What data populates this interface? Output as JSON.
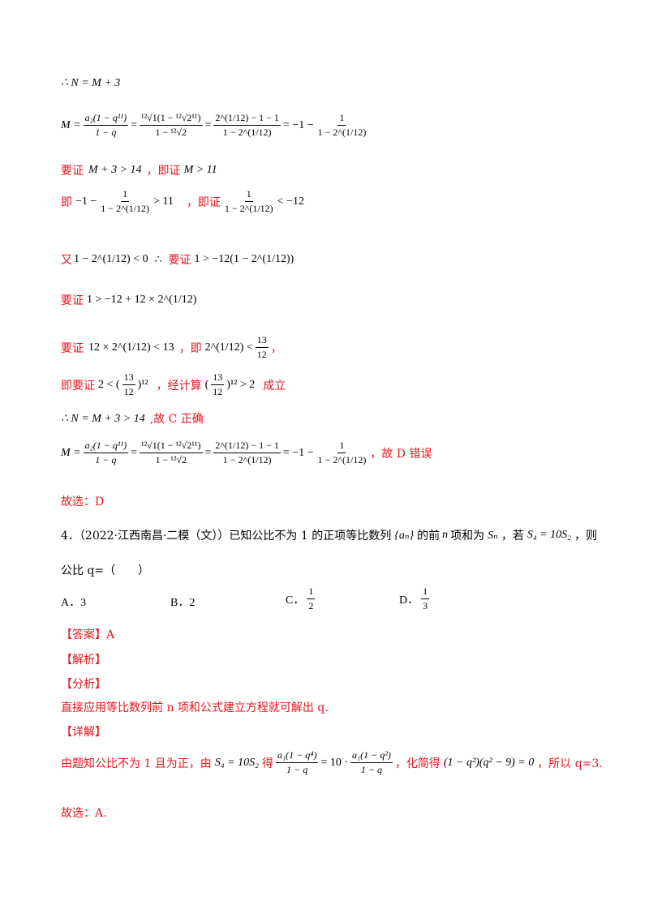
{
  "line1": "∴ N = M + 3",
  "line2": {
    "lhs": "M =",
    "f1_num": "a₂(1 − q¹¹)",
    "f1_den": "1 − q",
    "f2_num": "¹²√1(1 − ¹²√2¹¹)",
    "f2_den": "1 − ¹²√2",
    "f3_num": "2^(1/12) − 1 − 1",
    "f3_den": "1 − 2^(1/12)",
    "tail": "= −1 −",
    "f4_num": "1",
    "f4_den": "1 − 2^(1/12)"
  },
  "line3": {
    "t1": "要证",
    "m1": "M + 3 > 14",
    "t2": "，即证",
    "m2": "M > 11"
  },
  "line4": {
    "t1": "即",
    "m1a": "−1 −",
    "f_num": "1",
    "f_den": "1 − 2^(1/12)",
    "m1b": "> 11",
    "t2": "，即证",
    "f2_num": "1",
    "f2_den": "1 − 2^(1/12)",
    "m2b": "< −12"
  },
  "line5": {
    "t1": "又",
    "m1": "1 − 2^(1/12) < 0",
    "m2": "∴",
    "t2": "要证",
    "m3": "1 > −12(1 − 2^(1/12))"
  },
  "line6": {
    "t1": "要证",
    "m1": "1 > −12 + 12 × 2^(1/12)"
  },
  "line7": {
    "t1": "要证",
    "m1": "12 × 2^(1/12) < 13",
    "t2": "，即",
    "m2": "2^(1/12) <",
    "f_num": "13",
    "f_den": "12",
    "t3": "，"
  },
  "line8": {
    "t1": "即要证",
    "m1": "2 < (",
    "f_num": "13",
    "f_den": "12",
    "m2": ")¹²",
    "t2": "，经计算",
    "m3": "(",
    "m4": ")¹² > 2",
    "t3": "成立"
  },
  "line9": {
    "m1": "∴ N = M + 3 > 14",
    "t1": ",故 C 正确"
  },
  "line10": {
    "tail": "，故 D 错误"
  },
  "line11": "故选：D",
  "q4": {
    "prefix": "4．（2022·江西南昌·二模（文））已知公比不为 1 的正项等比数列",
    "seq": "{aₙ}",
    "mid": "的前",
    "n": "n",
    "mid2": "项和为",
    "Sn": "Sₙ",
    "mid3": "，若",
    "cond": "S₄ = 10S₂",
    "end": "，则",
    "line2": "公比 q=（　　）"
  },
  "options": [
    {
      "label": "A．3"
    },
    {
      "label": "B．2"
    },
    {
      "label": "C．",
      "num": "1",
      "den": "2"
    },
    {
      "label": "D．",
      "num": "1",
      "den": "3"
    }
  ],
  "answer": "【答案】A",
  "analysis_head": "【解析】",
  "fenxi": "【分析】",
  "fenxi_text": "直接应用等比数列前 n 项和公式建立方程就可解出 q.",
  "xiangjie": "【详解】",
  "detail": {
    "t1": "由题知公比不为 1 且为正，由",
    "m1": "S₄ = 10S₂",
    "t2": "得",
    "f1_num": "a₁(1 − q⁴)",
    "f1_den": "1 − q",
    "m2": "= 10 ·",
    "f2_num": "a₁(1 − q²)",
    "f2_den": "1 − q",
    "t3": "，化简得",
    "m3": "(1 − q²)(q² − 9) = 0",
    "t4": "，所以 q=3."
  },
  "final": "故选：A."
}
